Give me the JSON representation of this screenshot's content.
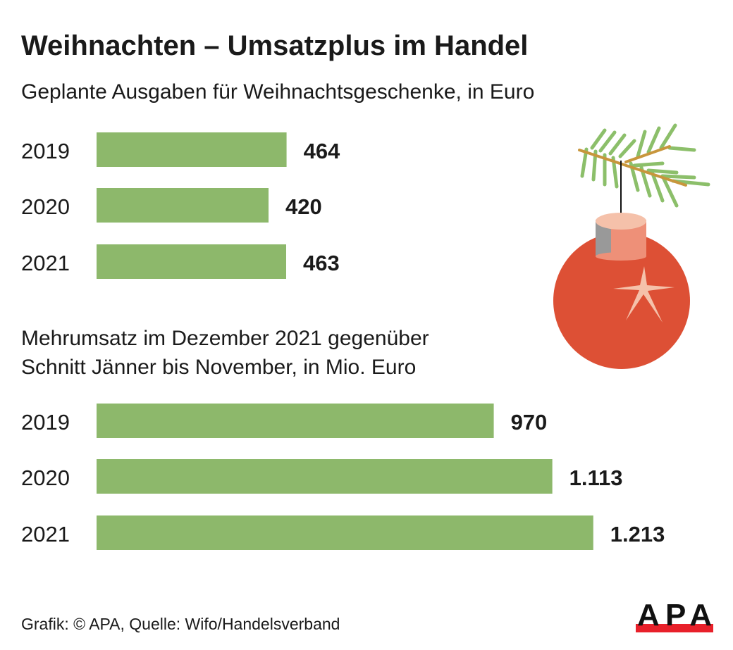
{
  "title": "Weihnachten – Umsatzplus im Handel",
  "source": "Grafik: © APA, Quelle: Wifo/Handelsverband",
  "logo_text": "APA",
  "colors": {
    "bar": "#8db86b",
    "ornament": "#dd5035",
    "logo_bar": "#e8202a"
  },
  "decoration": "christmas-ornament-on-fir-branch",
  "chart_data": [
    {
      "type": "bar",
      "orientation": "horizontal",
      "title": "Geplante Ausgaben für Weihnachtsgeschenke, in Euro",
      "categories": [
        "2019",
        "2020",
        "2021"
      ],
      "values": [
        464,
        420,
        463
      ],
      "value_labels": [
        "464",
        "420",
        "463"
      ],
      "grid": false
    },
    {
      "type": "bar",
      "orientation": "horizontal",
      "title_lines": [
        "Mehrumsatz im Dezember 2021 gegenüber",
        "Schnitt Jänner bis November, in Mio. Euro"
      ],
      "categories": [
        "2019",
        "2020",
        "2021"
      ],
      "values": [
        970,
        1113,
        1213
      ],
      "value_labels": [
        "970",
        "1.113",
        "1.213"
      ],
      "grid": false
    }
  ]
}
